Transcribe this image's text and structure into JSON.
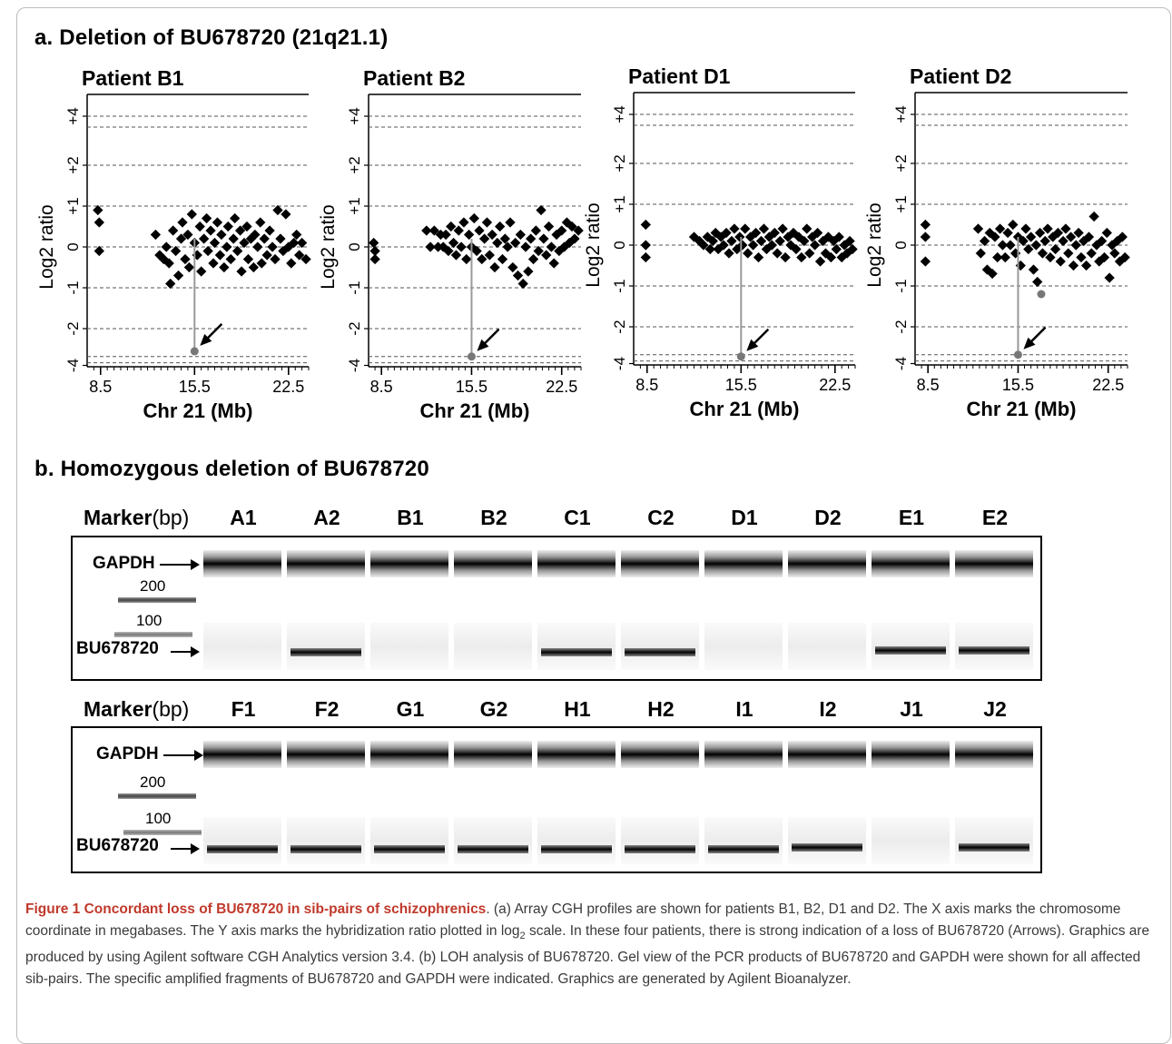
{
  "section_a_title": "a. Deletion of BU678720 (21q21.1)",
  "section_b_title": "b. Homozygous deletion of BU678720",
  "chart_data": [
    {
      "type": "scatter",
      "title": "Patient B1",
      "xlabel": "Chr 21 (Mb)",
      "ylabel": "Log2 ratio",
      "xticks": [
        "8.5",
        "15.5",
        "22.5"
      ],
      "yticks": [
        "+4",
        "+2",
        "+1",
        "0",
        "-1",
        "-2",
        "-4"
      ],
      "xlim": [
        7.5,
        24.0
      ],
      "grid": "dashed horizontal",
      "deletion_point": {
        "x": 15.5,
        "y": -3.2,
        "marked_by": "arrow"
      },
      "points": [
        [
          8.3,
          0.9
        ],
        [
          8.4,
          0.6
        ],
        [
          8.4,
          -0.1
        ],
        [
          12.6,
          0.3
        ],
        [
          12.9,
          -0.2
        ],
        [
          13.2,
          -0.3
        ],
        [
          13.4,
          0.0
        ],
        [
          13.6,
          -0.4
        ],
        [
          13.7,
          -0.9
        ],
        [
          13.9,
          0.4
        ],
        [
          14.1,
          -0.1
        ],
        [
          14.3,
          -0.7
        ],
        [
          14.5,
          0.2
        ],
        [
          14.6,
          0.6
        ],
        [
          14.8,
          -0.3
        ],
        [
          15.0,
          0.3
        ],
        [
          15.1,
          -0.5
        ],
        [
          15.3,
          0.8
        ],
        [
          15.5,
          0.1
        ],
        [
          15.7,
          -0.2
        ],
        [
          15.9,
          0.5
        ],
        [
          16.0,
          -0.6
        ],
        [
          16.2,
          0.2
        ],
        [
          16.4,
          0.7
        ],
        [
          16.5,
          -0.1
        ],
        [
          16.7,
          0.4
        ],
        [
          16.9,
          -0.4
        ],
        [
          17.0,
          0.1
        ],
        [
          17.2,
          0.6
        ],
        [
          17.4,
          -0.2
        ],
        [
          17.5,
          0.3
        ],
        [
          17.7,
          -0.5
        ],
        [
          17.9,
          0.0
        ],
        [
          18.0,
          0.5
        ],
        [
          18.2,
          -0.3
        ],
        [
          18.4,
          0.2
        ],
        [
          18.5,
          0.7
        ],
        [
          18.7,
          -0.1
        ],
        [
          18.9,
          0.4
        ],
        [
          19.0,
          -0.6
        ],
        [
          19.2,
          0.1
        ],
        [
          19.4,
          0.5
        ],
        [
          19.5,
          -0.3
        ],
        [
          19.7,
          0.2
        ],
        [
          19.9,
          -0.5
        ],
        [
          20.0,
          0.3
        ],
        [
          20.2,
          0.0
        ],
        [
          20.4,
          0.6
        ],
        [
          20.5,
          -0.4
        ],
        [
          20.7,
          0.2
        ],
        [
          20.9,
          -0.2
        ],
        [
          21.1,
          0.4
        ],
        [
          21.3,
          0.0
        ],
        [
          21.5,
          -0.3
        ],
        [
          21.7,
          0.9
        ],
        [
          21.9,
          0.2
        ],
        [
          22.1,
          -0.1
        ],
        [
          22.3,
          0.8
        ],
        [
          22.5,
          0.0
        ],
        [
          22.7,
          -0.4
        ],
        [
          22.9,
          0.1
        ],
        [
          23.1,
          0.3
        ],
        [
          23.3,
          -0.2
        ],
        [
          23.5,
          0.1
        ],
        [
          23.8,
          -0.3
        ]
      ]
    },
    {
      "type": "scatter",
      "title": "Patient B2",
      "xlabel": "Chr 21 (Mb)",
      "ylabel": "Log2 ratio",
      "xticks": [
        "8.5",
        "15.5",
        "22.5"
      ],
      "yticks": [
        "+4",
        "+2",
        "+1",
        "0",
        "-1",
        "-2",
        "-4"
      ],
      "xlim": [
        7.5,
        24.0
      ],
      "grid": "dashed horizontal",
      "deletion_point": {
        "x": 15.5,
        "y": -3.5,
        "marked_by": "arrow"
      },
      "points": [
        [
          7.9,
          0.1
        ],
        [
          8.0,
          -0.3
        ],
        [
          8.0,
          -0.1
        ],
        [
          12.0,
          0.4
        ],
        [
          12.3,
          0.0
        ],
        [
          12.6,
          0.4
        ],
        [
          12.9,
          0.0
        ],
        [
          13.1,
          0.3
        ],
        [
          13.3,
          0.0
        ],
        [
          13.5,
          0.3
        ],
        [
          13.7,
          -0.1
        ],
        [
          13.9,
          0.5
        ],
        [
          14.1,
          0.1
        ],
        [
          14.3,
          -0.2
        ],
        [
          14.5,
          0.4
        ],
        [
          14.7,
          0.0
        ],
        [
          14.9,
          0.6
        ],
        [
          15.1,
          -0.3
        ],
        [
          15.3,
          0.3
        ],
        [
          15.5,
          0.0
        ],
        [
          15.7,
          0.7
        ],
        [
          15.9,
          -0.1
        ],
        [
          16.1,
          0.4
        ],
        [
          16.3,
          -0.3
        ],
        [
          16.5,
          0.2
        ],
        [
          16.7,
          0.6
        ],
        [
          16.9,
          -0.2
        ],
        [
          17.1,
          0.3
        ],
        [
          17.3,
          -0.5
        ],
        [
          17.5,
          0.1
        ],
        [
          17.7,
          0.5
        ],
        [
          17.9,
          -0.3
        ],
        [
          18.1,
          0.2
        ],
        [
          18.3,
          0.0
        ],
        [
          18.5,
          0.6
        ],
        [
          18.7,
          -0.5
        ],
        [
          18.9,
          0.1
        ],
        [
          19.1,
          -0.7
        ],
        [
          19.3,
          0.3
        ],
        [
          19.5,
          -0.9
        ],
        [
          19.7,
          0.0
        ],
        [
          19.9,
          -0.6
        ],
        [
          20.1,
          0.2
        ],
        [
          20.3,
          -0.3
        ],
        [
          20.5,
          0.4
        ],
        [
          20.7,
          -0.1
        ],
        [
          20.9,
          0.9
        ],
        [
          21.1,
          0.2
        ],
        [
          21.3,
          -0.2
        ],
        [
          21.5,
          0.5
        ],
        [
          21.7,
          0.0
        ],
        [
          21.9,
          -0.4
        ],
        [
          22.1,
          0.3
        ],
        [
          22.3,
          -0.1
        ],
        [
          22.5,
          0.4
        ],
        [
          22.7,
          0.0
        ],
        [
          22.9,
          0.6
        ],
        [
          23.1,
          0.1
        ],
        [
          23.3,
          0.5
        ],
        [
          23.5,
          0.2
        ],
        [
          23.8,
          0.4
        ]
      ]
    },
    {
      "type": "scatter",
      "title": "Patient D1",
      "xlabel": "Chr 21 (Mb)",
      "ylabel": "Log2 ratio",
      "xticks": [
        "8.5",
        "15.5",
        "22.5"
      ],
      "yticks": [
        "+4",
        "+2",
        "+1",
        "0",
        "-1",
        "-2",
        "-4"
      ],
      "xlim": [
        7.5,
        24.0
      ],
      "grid": "dashed horizontal",
      "deletion_point": {
        "x": 15.5,
        "y": -3.6,
        "marked_by": "arrow"
      },
      "points": [
        [
          8.4,
          0.5
        ],
        [
          8.4,
          0.0
        ],
        [
          8.4,
          -0.3
        ],
        [
          12.0,
          0.2
        ],
        [
          12.4,
          0.1
        ],
        [
          12.7,
          0.0
        ],
        [
          13.0,
          0.2
        ],
        [
          13.2,
          -0.1
        ],
        [
          13.4,
          0.1
        ],
        [
          13.6,
          0.3
        ],
        [
          13.8,
          -0.1
        ],
        [
          14.0,
          0.2
        ],
        [
          14.2,
          0.0
        ],
        [
          14.4,
          0.3
        ],
        [
          14.6,
          -0.2
        ],
        [
          14.8,
          0.1
        ],
        [
          15.0,
          0.4
        ],
        [
          15.2,
          -0.1
        ],
        [
          15.4,
          0.2
        ],
        [
          15.6,
          0.0
        ],
        [
          15.8,
          0.4
        ],
        [
          16.0,
          -0.2
        ],
        [
          16.2,
          0.2
        ],
        [
          16.4,
          0.0
        ],
        [
          16.6,
          0.3
        ],
        [
          16.8,
          -0.3
        ],
        [
          17.0,
          0.1
        ],
        [
          17.2,
          0.4
        ],
        [
          17.4,
          -0.1
        ],
        [
          17.6,
          0.2
        ],
        [
          17.8,
          0.0
        ],
        [
          18.0,
          0.3
        ],
        [
          18.2,
          -0.2
        ],
        [
          18.4,
          0.1
        ],
        [
          18.6,
          0.4
        ],
        [
          18.8,
          -0.3
        ],
        [
          19.0,
          0.2
        ],
        [
          19.2,
          0.0
        ],
        [
          19.4,
          0.3
        ],
        [
          19.6,
          -0.1
        ],
        [
          19.8,
          0.2
        ],
        [
          20.0,
          -0.3
        ],
        [
          20.2,
          0.1
        ],
        [
          20.4,
          0.4
        ],
        [
          20.6,
          -0.2
        ],
        [
          20.8,
          0.2
        ],
        [
          21.0,
          0.0
        ],
        [
          21.2,
          0.3
        ],
        [
          21.4,
          -0.4
        ],
        [
          21.6,
          0.1
        ],
        [
          21.8,
          -0.2
        ],
        [
          22.0,
          0.2
        ],
        [
          22.2,
          -0.3
        ],
        [
          22.4,
          0.1
        ],
        [
          22.6,
          -0.1
        ],
        [
          22.8,
          0.2
        ],
        [
          23.0,
          -0.3
        ],
        [
          23.2,
          0.0
        ],
        [
          23.4,
          -0.2
        ],
        [
          23.6,
          0.1
        ],
        [
          23.8,
          -0.1
        ]
      ]
    },
    {
      "type": "scatter",
      "title": "Patient D2",
      "xlabel": "Chr 21 (Mb)",
      "ylabel": "Log2 ratio",
      "xticks": [
        "8.5",
        "15.5",
        "22.5"
      ],
      "yticks": [
        "+4",
        "+2",
        "+1",
        "0",
        "-1",
        "-2",
        "-4"
      ],
      "xlim": [
        7.5,
        24.0
      ],
      "grid": "dashed horizontal",
      "deletion_point": {
        "x": 15.5,
        "y": -3.5,
        "marked_by": "arrow"
      },
      "secondary_point": {
        "x": 17.3,
        "y": -1.2
      },
      "points": [
        [
          8.3,
          0.5
        ],
        [
          8.3,
          0.2
        ],
        [
          8.3,
          -0.4
        ],
        [
          12.4,
          0.4
        ],
        [
          12.6,
          -0.2
        ],
        [
          12.9,
          0.1
        ],
        [
          13.1,
          -0.6
        ],
        [
          13.3,
          0.3
        ],
        [
          13.5,
          -0.7
        ],
        [
          13.7,
          0.2
        ],
        [
          13.9,
          -0.3
        ],
        [
          14.1,
          0.4
        ],
        [
          14.3,
          0.0
        ],
        [
          14.5,
          -0.3
        ],
        [
          14.7,
          0.3
        ],
        [
          14.9,
          0.0
        ],
        [
          15.1,
          0.5
        ],
        [
          15.3,
          -0.2
        ],
        [
          15.5,
          0.2
        ],
        [
          15.7,
          -0.5
        ],
        [
          15.9,
          0.1
        ],
        [
          16.1,
          0.4
        ],
        [
          16.3,
          -0.1
        ],
        [
          16.5,
          0.2
        ],
        [
          16.7,
          -0.6
        ],
        [
          16.9,
          0.0
        ],
        [
          17.0,
          -0.9
        ],
        [
          17.2,
          0.3
        ],
        [
          17.4,
          -0.2
        ],
        [
          17.6,
          0.1
        ],
        [
          17.8,
          0.4
        ],
        [
          18.0,
          -0.3
        ],
        [
          18.2,
          0.2
        ],
        [
          18.4,
          -0.1
        ],
        [
          18.6,
          0.3
        ],
        [
          18.8,
          -0.4
        ],
        [
          19.0,
          0.1
        ],
        [
          19.2,
          0.4
        ],
        [
          19.4,
          -0.2
        ],
        [
          19.6,
          0.2
        ],
        [
          19.8,
          -0.5
        ],
        [
          20.0,
          0.0
        ],
        [
          20.2,
          0.3
        ],
        [
          20.4,
          -0.3
        ],
        [
          20.6,
          0.1
        ],
        [
          20.8,
          -0.5
        ],
        [
          21.0,
          0.2
        ],
        [
          21.2,
          -0.2
        ],
        [
          21.4,
          0.7
        ],
        [
          21.6,
          0.0
        ],
        [
          21.8,
          -0.4
        ],
        [
          22.0,
          0.1
        ],
        [
          22.2,
          -0.3
        ],
        [
          22.4,
          0.3
        ],
        [
          22.6,
          -0.8
        ],
        [
          22.8,
          0.0
        ],
        [
          23.0,
          -0.2
        ],
        [
          23.2,
          0.1
        ],
        [
          23.4,
          -0.4
        ],
        [
          23.6,
          0.2
        ],
        [
          23.8,
          -0.3
        ]
      ]
    }
  ],
  "gel": {
    "header_marker": "Marker",
    "header_unit": "(bp)",
    "gapdh_label": "GAPDH",
    "bu_label": "BU678720",
    "ladder_200": "200",
    "ladder_100": "100",
    "row1": {
      "lanes": [
        "A1",
        "A2",
        "B1",
        "B2",
        "C1",
        "C2",
        "D1",
        "D2",
        "E1",
        "E2"
      ],
      "bu_present": [
        0,
        1,
        0,
        0,
        1,
        1,
        0,
        0,
        1,
        1
      ]
    },
    "row2": {
      "lanes": [
        "F1",
        "F2",
        "G1",
        "G2",
        "H1",
        "H2",
        "I1",
        "I2",
        "J1",
        "J2"
      ],
      "bu_present": [
        1,
        1,
        1,
        1,
        1,
        1,
        1,
        1,
        0,
        1
      ]
    }
  },
  "caption": {
    "title": "Figure 1 Concordant loss of BU678720 in sib-pairs of schizophrenics",
    "body_1": ". (a) Array CGH profiles are shown for patients B1, B2, D1 and D2. The X axis marks the chromosome coordinate in megabases. The Y axis marks the hybridization ratio plotted in log",
    "body_sub": "2",
    "body_2": " scale. In these four patients, there is strong indication of a loss of BU678720 (Arrows). Graphics are produced by using Agilent software CGH Analytics version 3.4. (b) LOH analysis of BU678720. Gel view of the PCR products of BU678720 and GAPDH were shown for all affected sib-pairs. The specific amplified fragments of BU678720 and GAPDH were indicated. Graphics are generated by Agilent Bioanalyzer."
  }
}
